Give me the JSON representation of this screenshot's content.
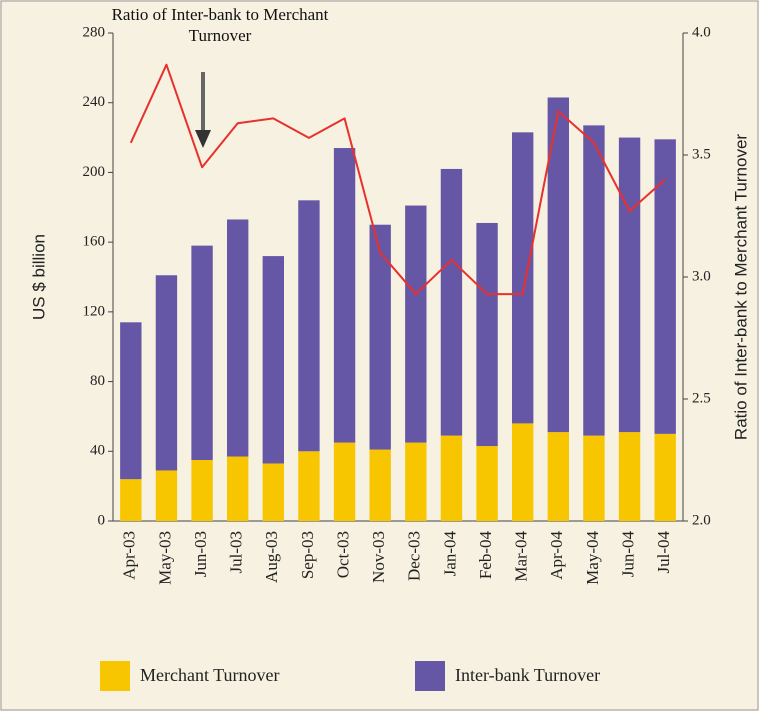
{
  "chart_data": {
    "type": "bar",
    "annotation": "Ratio of Inter-bank to Merchant Turnover",
    "ylabel": "US $ billion",
    "y2label": "Ratio of Inter-bank to Merchant Turnover",
    "stacked": true,
    "categories": [
      "Apr-03",
      "May-03",
      "Jun-03",
      "Jul-03",
      "Aug-03",
      "Sep-03",
      "Oct-03",
      "Nov-03",
      "Dec-03",
      "Jan-04",
      "Feb-04",
      "Mar-04",
      "Apr-04",
      "May-04",
      "Jun-04",
      "Jul-04"
    ],
    "series": [
      {
        "name": "Merchant Turnover",
        "color": "#f7c600",
        "values": [
          24,
          29,
          35,
          37,
          33,
          40,
          45,
          41,
          45,
          49,
          43,
          56,
          51,
          49,
          51,
          50
        ]
      },
      {
        "name": "Inter-bank Turnover",
        "color": "#6656a6",
        "values": [
          90,
          112,
          123,
          136,
          119,
          144,
          169,
          129,
          136,
          153,
          128,
          167,
          192,
          178,
          169,
          169
        ]
      },
      {
        "name": "Ratio of Inter-bank to Merchant Turnover",
        "type": "line",
        "axis": "y2",
        "color": "#e8302c",
        "values": [
          3.55,
          3.87,
          3.45,
          3.63,
          3.65,
          3.57,
          3.65,
          3.1,
          2.93,
          3.07,
          2.93,
          2.93,
          3.68,
          3.55,
          3.27,
          3.4
        ]
      }
    ],
    "ylim": [
      0,
      280
    ],
    "yticks": [
      0,
      40,
      80,
      120,
      160,
      200,
      240,
      280
    ],
    "y2lim": [
      2,
      4
    ],
    "y2ticks": [
      {
        "value": 2,
        "label": "2.0"
      },
      {
        "value": 2.5,
        "label": "2.5"
      },
      {
        "value": 3,
        "label": "3.0"
      },
      {
        "value": 3.5,
        "label": "3.5"
      },
      {
        "value": 4,
        "label": "4.0"
      }
    ],
    "legend": "bottom"
  }
}
